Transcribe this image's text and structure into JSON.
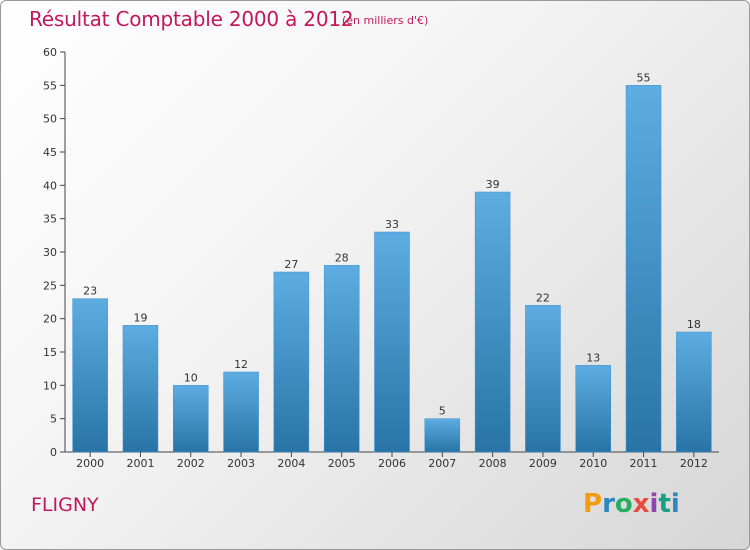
{
  "title": "Résultat Comptable 2000 à 2012",
  "subtitle": "(en milliers d'€)",
  "commune": "FLIGNY",
  "logo": {
    "letters": [
      "P",
      "r",
      "o",
      "x",
      "i",
      "t",
      "i"
    ]
  },
  "colors": {
    "title": "#c2185b",
    "bar_top": "#5dade2",
    "bar_bottom": "#2874a6"
  },
  "chart_data": {
    "type": "bar",
    "title": "Résultat Comptable 2000 à 2012",
    "ylabel": "en milliers d'€",
    "xlabel": "",
    "categories": [
      "2000",
      "2001",
      "2002",
      "2003",
      "2004",
      "2005",
      "2006",
      "2007",
      "2008",
      "2009",
      "2010",
      "2011",
      "2012"
    ],
    "values": [
      23,
      19,
      10,
      12,
      27,
      28,
      33,
      5,
      39,
      22,
      13,
      55,
      18
    ],
    "ylim": [
      0,
      60
    ],
    "yticks": [
      0,
      5,
      10,
      15,
      20,
      25,
      30,
      35,
      40,
      45,
      50,
      55,
      60
    ],
    "grid": false,
    "data_labels": true
  }
}
